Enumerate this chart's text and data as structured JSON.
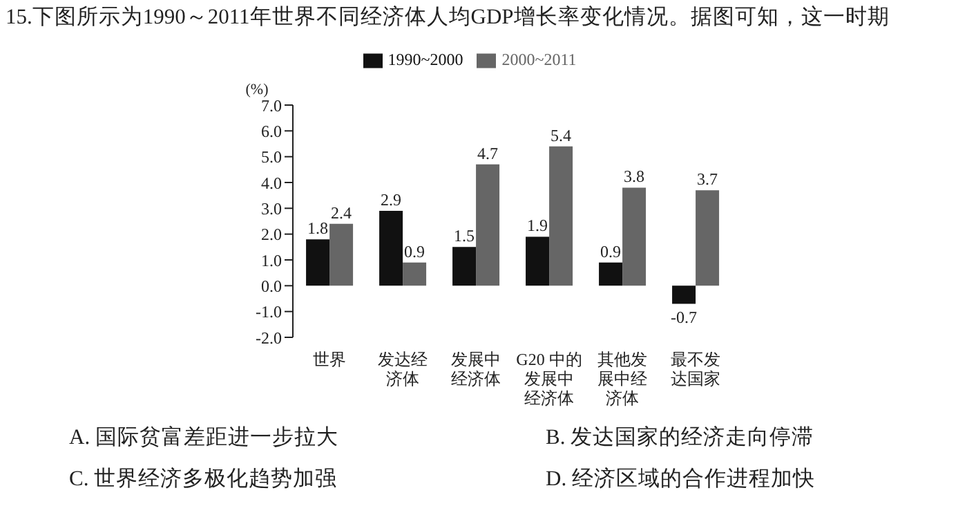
{
  "chart_data": {
    "type": "bar",
    "title": "15.下图所示为1990～2011年世界不同经济体人均GDP增长率变化情况。据图可知，这一时期",
    "ylabel": "(%)",
    "categories": [
      "世界",
      "发达经济体",
      "发展中经济体",
      "G20 中的发展中经济体",
      "其他发展中经济体",
      "最不发达国家"
    ],
    "series": [
      {
        "name": "1990~2000",
        "color": "#111111",
        "values": [
          1.8,
          2.9,
          1.5,
          1.9,
          0.9,
          -0.7
        ]
      },
      {
        "name": "2000~2011",
        "color": "#666666",
        "values": [
          2.4,
          0.9,
          4.7,
          5.4,
          3.8,
          3.7
        ]
      }
    ],
    "ylim": [
      -2,
      7
    ],
    "yticks": [
      {
        "value": -2,
        "label": "-2.0"
      },
      {
        "value": -1,
        "label": "-1.0"
      },
      {
        "value": 0,
        "label": "0.0"
      },
      {
        "value": 1,
        "label": "1.0"
      },
      {
        "value": 2,
        "label": "2.0"
      },
      {
        "value": 3,
        "label": "3.0"
      },
      {
        "value": 4,
        "label": "4.0"
      },
      {
        "value": 5,
        "label": "5.0"
      },
      {
        "value": 6,
        "label": "6.0"
      },
      {
        "value": 7,
        "label": "7.0"
      }
    ],
    "data_labels": true,
    "legend": "top",
    "grid": false,
    "annotations": [
      "A. 国际贫富差距进一步拉大",
      "B. 发达国家的经济走向停滞",
      "C. 世界经济多极化趋势加强",
      "D. 经济区域的合作进程加快"
    ]
  }
}
